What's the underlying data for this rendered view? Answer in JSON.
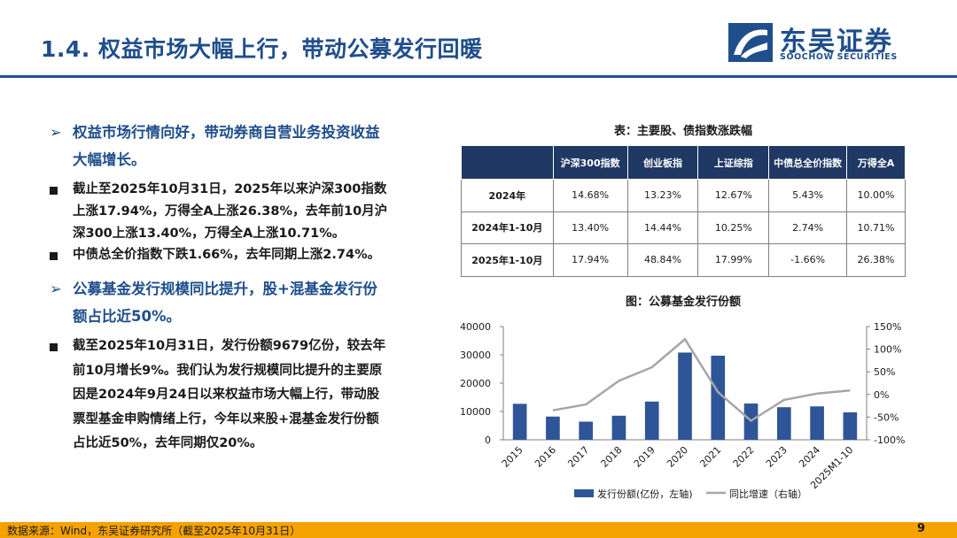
{
  "page": {
    "title": "1.4. 权益市场大幅上行，带动公募发行回暖",
    "logo_cn": "东吴证券",
    "logo_en": "SOOCHOW SECURITIES",
    "source": "数据来源：Wind，东吴证券研究所（截至2025年10月31日）",
    "page_number": "9"
  },
  "bullets": {
    "h1": "权益市场行情向好，带动券商自营业务投资收益大幅增长。",
    "p1": "截止至2025年10月31日，2025年以来沪深300指数上涨17.94%，万得全A上涨26.38%，去年前10月沪深300上涨13.40%，万得全A上涨10.71%。",
    "p2": "中债总全价指数下跌1.66%，去年同期上涨2.74%。",
    "h2": "公募基金发行规模同比提升，股+混基金发行份额占比近50%。",
    "p3": "截至2025年10月31日，发行份额9679亿份，较去年前10月增长9%。我们认为发行规模同比提升的主要原因是2024年9月24日以来权益市场大幅上行，带动股票型基金申购情绪上行，今年以来股+混基金发行份额占比近50%，去年同期仅20%。"
  },
  "table": {
    "title": "表：主要股、债指数涨跌幅",
    "headers": [
      "",
      "沪深300指数",
      "创业板指",
      "上证综指",
      "中债总全价指数",
      "万得全A"
    ],
    "rows": [
      [
        "2024年",
        "14.68%",
        "13.23%",
        "12.67%",
        "5.43%",
        "10.00%"
      ],
      [
        "2024年1-10月",
        "13.40%",
        "14.44%",
        "10.25%",
        "2.74%",
        "10.71%"
      ],
      [
        "2025年1-10月",
        "17.94%",
        "48.84%",
        "17.99%",
        "-1.66%",
        "26.38%"
      ]
    ]
  },
  "chart_data": {
    "type": "bar",
    "title": "图：公募基金发行份额",
    "categories": [
      "2015",
      "2016",
      "2017",
      "2018",
      "2019",
      "2020",
      "2021",
      "2022",
      "2023",
      "2024",
      "2025M1-10"
    ],
    "series": [
      {
        "name": "发行份额(亿份，左轴)",
        "type": "bar",
        "axis": "left",
        "color": "#2e5597",
        "values": [
          12700,
          8200,
          6400,
          8500,
          13500,
          30800,
          29700,
          12800,
          11500,
          11800,
          9679
        ]
      },
      {
        "name": "同比增速（右轴）",
        "type": "line",
        "axis": "right",
        "color": "#a6a6a6",
        "values": [
          null,
          -35,
          -22,
          30,
          60,
          122,
          5,
          -58,
          -12,
          2,
          9
        ]
      }
    ],
    "left_axis": {
      "ylim": [
        0,
        40000
      ],
      "ticks": [
        "40000",
        "30000",
        "20000",
        "10000",
        "0"
      ]
    },
    "right_axis": {
      "ylim": [
        -100,
        150
      ],
      "ticks": [
        "150%",
        "100%",
        "50%",
        "0%",
        "-50%",
        "-100%"
      ]
    },
    "legend_position": "bottom"
  }
}
